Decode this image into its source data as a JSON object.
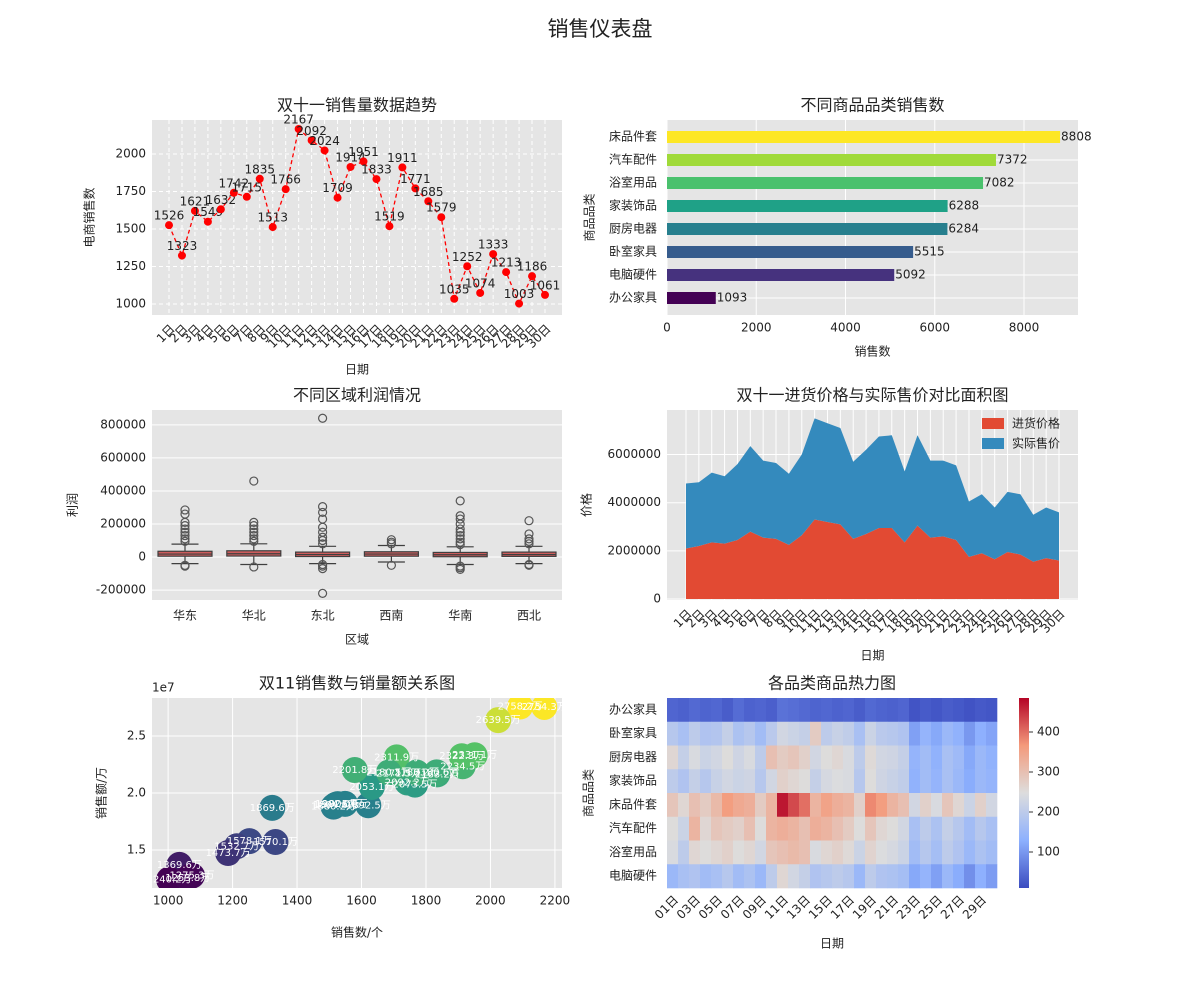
{
  "title": "销售仪表盘",
  "chart_data": [
    {
      "type": "line",
      "title": "双十一销售量数据趋势",
      "xlabel": "日期",
      "ylabel": "电商销售数",
      "categories": [
        "1日",
        "2日",
        "3日",
        "4日",
        "5日",
        "6日",
        "7日",
        "8日",
        "9日",
        "10日",
        "11日",
        "12日",
        "13日",
        "14日",
        "15日",
        "16日",
        "17日",
        "18日",
        "19日",
        "20日",
        "21日",
        "22日",
        "23日",
        "24日",
        "25日",
        "26日",
        "27日",
        "28日",
        "29日",
        "30日"
      ],
      "values": [
        1526,
        1323,
        1621,
        1549,
        1632,
        1742,
        1715,
        1835,
        1513,
        1766,
        2167,
        2092,
        2024,
        1709,
        1914,
        1951,
        1833,
        1519,
        1911,
        1771,
        1685,
        1579,
        1035,
        1252,
        1074,
        1333,
        1213,
        1003,
        1186,
        1061
      ],
      "color": "#ff0000",
      "linestyle": "dashed",
      "grid": "dashed",
      "ylim": [
        927,
        2227
      ],
      "yticks": [
        1000,
        1250,
        1500,
        1750,
        2000
      ]
    },
    {
      "type": "barh",
      "title": "不同商品品类销售数",
      "xlabel": "销售数",
      "ylabel": "商品品类",
      "categories": [
        "办公家具",
        "电脑硬件",
        "卧室家具",
        "厨房电器",
        "家装饰品",
        "浴室用品",
        "汽车配件",
        "床品件套"
      ],
      "values": [
        1093,
        5092,
        5515,
        6284,
        6288,
        7082,
        7372,
        8808
      ],
      "colors": [
        "#440154",
        "#46327e",
        "#365c8d",
        "#277f8e",
        "#1fa187",
        "#4ac16d",
        "#a0da39",
        "#fde725"
      ],
      "grid": true,
      "xlim": [
        0,
        9210
      ],
      "xticks": [
        0,
        2000,
        4000,
        6000,
        8000
      ]
    },
    {
      "type": "box",
      "title": "不同区域利润情况",
      "xlabel": "区域",
      "ylabel": "利润",
      "categories": [
        "华东",
        "华北",
        "东北",
        "西南",
        "华南",
        "西北"
      ],
      "boxes": [
        {
          "whislo": -40000,
          "q1": 5000,
          "med": 18000,
          "q3": 35000,
          "whishi": 78000,
          "fliers": [
            -55000,
            -50000,
            95000,
            110000,
            130000,
            150000,
            170000,
            190000,
            210000,
            260000,
            285000
          ]
        },
        {
          "whislo": -45000,
          "q1": 6000,
          "med": 20000,
          "q3": 38000,
          "whishi": 80000,
          "fliers": [
            -60000,
            95000,
            110000,
            130000,
            150000,
            170000,
            190000,
            210000,
            460000
          ]
        },
        {
          "whislo": -40000,
          "q1": 3000,
          "med": 15000,
          "q3": 30000,
          "whishi": 65000,
          "fliers": [
            -220000,
            -70000,
            -55000,
            -45000,
            80000,
            100000,
            120000,
            150000,
            180000,
            230000,
            270000,
            305000,
            840000
          ]
        },
        {
          "whislo": -30000,
          "q1": 5000,
          "med": 18000,
          "q3": 32000,
          "whishi": 70000,
          "fliers": [
            -50000,
            80000,
            90000,
            105000
          ]
        },
        {
          "whislo": -45000,
          "q1": 2000,
          "med": 14000,
          "q3": 28000,
          "whishi": 62000,
          "fliers": [
            -75000,
            -65000,
            -55000,
            75000,
            90000,
            110000,
            130000,
            150000,
            170000,
            200000,
            230000,
            250000,
            340000
          ]
        },
        {
          "whislo": -40000,
          "q1": 4000,
          "med": 15000,
          "q3": 30000,
          "whishi": 65000,
          "fliers": [
            -50000,
            -45000,
            80000,
            95000,
            110000,
            140000,
            220000
          ]
        }
      ],
      "color": "#cd5c5c",
      "grid": true,
      "ylim": [
        -260000,
        890000
      ],
      "yticks": [
        -200000,
        0,
        200000,
        400000,
        600000,
        800000
      ]
    },
    {
      "type": "area",
      "title": "双十一进货价格与实际售价对比面积图",
      "xlabel": "日期",
      "ylabel": "价格",
      "categories": [
        "1日",
        "2日",
        "3日",
        "4日",
        "5日",
        "6日",
        "7日",
        "8日",
        "9日",
        "10日",
        "11日",
        "12日",
        "13日",
        "14日",
        "15日",
        "16日",
        "17日",
        "18日",
        "19日",
        "20日",
        "21日",
        "22日",
        "23日",
        "24日",
        "25日",
        "26日",
        "27日",
        "28日",
        "29日",
        "30日"
      ],
      "series": [
        {
          "name": "进货价格",
          "color": "#E24A33",
          "values": [
            2100000,
            2200000,
            2350000,
            2300000,
            2450000,
            2800000,
            2550000,
            2500000,
            2250000,
            2650000,
            3300000,
            3200000,
            3100000,
            2500000,
            2700000,
            2950000,
            2950000,
            2350000,
            3050000,
            2550000,
            2600000,
            2450000,
            1750000,
            1900000,
            1650000,
            1950000,
            1850000,
            1550000,
            1700000,
            1600000
          ]
        },
        {
          "name": "实际售价",
          "color": "#348ABD",
          "values": [
            2700000,
            2650000,
            2900000,
            2800000,
            3150000,
            3550000,
            3200000,
            3150000,
            2950000,
            3350000,
            4200000,
            4100000,
            4000000,
            3200000,
            3500000,
            3800000,
            3850000,
            2950000,
            3750000,
            3200000,
            3150000,
            3100000,
            2300000,
            2450000,
            2150000,
            2500000,
            2500000,
            1950000,
            2100000,
            2000000
          ]
        }
      ],
      "stacked": true,
      "legend": "upper right",
      "grid": true,
      "ylim": [
        -41000,
        7850000
      ],
      "yticks": [
        0,
        2000000,
        4000000,
        6000000
      ]
    },
    {
      "type": "scatter",
      "title": "双11销售数与销量额关系图",
      "xlabel": "销售数/个",
      "ylabel": "销售额/万",
      "offset_label": "1e7",
      "x": [
        1526,
        1323,
        1621,
        1549,
        1632,
        1742,
        1715,
        1835,
        1513,
        1766,
        2167,
        2092,
        2024,
        1709,
        1914,
        1951,
        1833,
        1519,
        1911,
        1771,
        1685,
        1579,
        1035,
        1252,
        1074,
        1333,
        1213,
        1003,
        1186,
        1061
      ],
      "y": [
        1.902,
        1.8696,
        1.8925,
        1.905,
        2.0531,
        2.0922,
        2.1715,
        2.1632,
        1.8802,
        2.0735,
        2.7543,
        2.7582,
        2.6395,
        2.3119,
        2.2345,
        2.3311,
        2.1806,
        1.8946,
        2.3223,
        2.1802,
        2.1805,
        2.2018,
        1.3696,
        1.5781,
        1.2753,
        1.5701,
        1.5327,
        1.2402,
        1.4737,
        1.2538
      ],
      "value_labels": [
        "1902.0万",
        "1869.6万",
        "1892.5万",
        "1905.0万",
        "2053.1万",
        "2092.2万",
        "2171.5万",
        "2163.2万",
        "1880.2万",
        "2073.5万",
        "2754.3万",
        "2758.2万",
        "2639.5万",
        "2311.9万",
        "2234.5万",
        "2331.1万",
        "2180.6万",
        "1894.6万",
        "2322.3万",
        "2180.2万",
        "2180.5万",
        "2201.8万",
        "1369.6万",
        "1578.1万",
        "1275.3万",
        "1570.1万",
        "1532.7万",
        "1240.2万",
        "1473.7万",
        "1253.8万"
      ],
      "colormap": "viridis",
      "grid": true,
      "xlim": [
        950,
        2222
      ],
      "xticks": [
        1000,
        1200,
        1400,
        1600,
        1800,
        2000,
        2200
      ],
      "ylim": [
        1.167,
        2.833
      ],
      "yticks": [
        1.5,
        {
          "value": 2,
          "label": "2.0"
        },
        2.5
      ]
    },
    {
      "type": "heatmap",
      "title": "各品类商品热力图",
      "xlabel": "日期",
      "ylabel": "商品品类",
      "rows": [
        "办公家具",
        "卧室家具",
        "厨房电器",
        "家装饰品",
        "床品件套",
        "汽车配件",
        "浴室用品",
        "电脑硬件"
      ],
      "categories": [
        "01日",
        null,
        "03日",
        null,
        "05日",
        null,
        "07日",
        null,
        "09日",
        null,
        "11日",
        null,
        "13日",
        null,
        "15日",
        null,
        "17日",
        null,
        "19日",
        null,
        "21日",
        null,
        "23日",
        null,
        "25日",
        null,
        "27日",
        null,
        "29日",
        null
      ],
      "values": [
        [
          40,
          35,
          45,
          38,
          42,
          30,
          48,
          36,
          40,
          33,
          55,
          50,
          45,
          38,
          42,
          36,
          40,
          30,
          44,
          38,
          35,
          40,
          20,
          28,
          22,
          30,
          25,
          18,
          26,
          22
        ],
        [
          190,
          170,
          200,
          180,
          185,
          210,
          175,
          190,
          160,
          195,
          230,
          220,
          210,
          280,
          200,
          215,
          205,
          170,
          220,
          195,
          190,
          180,
          110,
          140,
          120,
          150,
          135,
          100,
          130,
          115
        ],
        [
          260,
          210,
          240,
          220,
          230,
          250,
          225,
          240,
          200,
          300,
          280,
          290,
          270,
          230,
          250,
          260,
          240,
          200,
          255,
          230,
          225,
          210,
          140,
          160,
          135,
          170,
          155,
          120,
          150,
          135
        ],
        [
          200,
          180,
          210,
          190,
          215,
          230,
          220,
          225,
          190,
          230,
          270,
          260,
          250,
          210,
          235,
          245,
          240,
          190,
          250,
          225,
          215,
          205,
          135,
          160,
          140,
          170,
          150,
          125,
          150,
          140
        ],
        [
          290,
          260,
          300,
          280,
          310,
          360,
          340,
          330,
          280,
          320,
          470,
          430,
          400,
          320,
          350,
          330,
          320,
          270,
          380,
          360,
          320,
          300,
          230,
          270,
          240,
          290,
          260,
          220,
          270,
          230
        ],
        [
          250,
          220,
          320,
          260,
          290,
          280,
          270,
          300,
          250,
          320,
          330,
          320,
          300,
          330,
          320,
          300,
          280,
          250,
          290,
          260,
          250,
          230,
          170,
          200,
          175,
          210,
          190,
          160,
          190,
          170
        ],
        [
          240,
          200,
          260,
          250,
          260,
          270,
          250,
          260,
          230,
          290,
          300,
          310,
          300,
          240,
          260,
          270,
          255,
          220,
          265,
          245,
          235,
          220,
          160,
          190,
          165,
          200,
          180,
          150,
          175,
          160
        ],
        [
          150,
          170,
          180,
          160,
          170,
          190,
          160,
          175,
          150,
          200,
          260,
          230,
          210,
          180,
          190,
          200,
          190,
          150,
          200,
          180,
          175,
          165,
          120,
          140,
          110,
          150,
          125,
          90,
          130,
          105
        ]
      ],
      "colormap": "coolwarm",
      "clim": [
        10,
        485
      ],
      "colorbar_ticks": [
        100,
        200,
        300,
        400
      ]
    }
  ]
}
